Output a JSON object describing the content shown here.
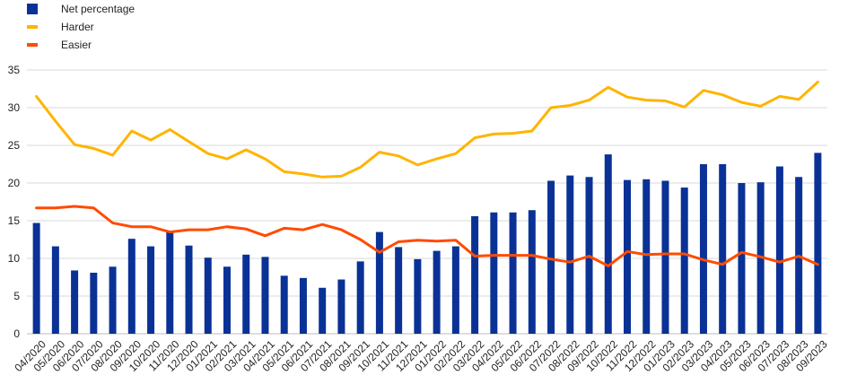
{
  "chart_data": {
    "type": "bar",
    "categories": [
      "04/2020",
      "05/2020",
      "06/2020",
      "07/2020",
      "08/2020",
      "09/2020",
      "10/2020",
      "11/2020",
      "12/2020",
      "01/2021",
      "02/2021",
      "03/2021",
      "04/2021",
      "05/2021",
      "06/2021",
      "07/2021",
      "08/2021",
      "09/2021",
      "10/2021",
      "11/2021",
      "12/2021",
      "01/2022",
      "02/2022",
      "03/2022",
      "04/2022",
      "05/2022",
      "06/2022",
      "07/2022",
      "08/2022",
      "09/2022",
      "10/2022",
      "11/2022",
      "12/2022",
      "01/2023",
      "02/2023",
      "03/2023",
      "04/2023",
      "05/2023",
      "06/2023",
      "07/2023",
      "08/2023",
      "09/2023"
    ],
    "series": [
      {
        "name": "Net percentage",
        "type": "bar",
        "color": "#0a3296",
        "values": [
          14.7,
          11.6,
          8.4,
          8.1,
          8.9,
          12.6,
          11.6,
          13.6,
          11.7,
          10.1,
          8.9,
          10.5,
          10.2,
          7.7,
          7.4,
          6.1,
          7.2,
          9.6,
          13.5,
          11.5,
          9.9,
          11.0,
          11.6,
          15.6,
          16.1,
          16.1,
          16.4,
          20.3,
          21.0,
          20.8,
          23.8,
          20.4,
          20.5,
          20.3,
          19.4,
          22.5,
          22.5,
          20.0,
          20.1,
          22.2,
          20.8,
          24.0
        ]
      },
      {
        "name": "Harder",
        "type": "line",
        "color": "#ffb400",
        "values": [
          31.5,
          28.2,
          25.1,
          24.6,
          23.7,
          26.9,
          25.7,
          27.1,
          25.5,
          23.9,
          23.2,
          24.4,
          23.2,
          21.5,
          21.2,
          20.8,
          20.9,
          22.1,
          24.1,
          23.6,
          22.4,
          23.2,
          23.9,
          26.0,
          26.5,
          26.6,
          26.9,
          30.0,
          30.3,
          31.0,
          32.7,
          31.4,
          31.0,
          30.9,
          30.1,
          32.3,
          31.7,
          30.7,
          30.2,
          31.5,
          31.1,
          33.4
        ]
      },
      {
        "name": "Easier",
        "type": "line",
        "color": "#ff4b00",
        "values": [
          16.7,
          16.7,
          16.9,
          16.7,
          14.7,
          14.2,
          14.2,
          13.5,
          13.8,
          13.8,
          14.2,
          13.9,
          13.0,
          14.0,
          13.8,
          14.5,
          13.8,
          12.5,
          10.8,
          12.2,
          12.4,
          12.3,
          12.4,
          10.3,
          10.4,
          10.4,
          10.4,
          9.9,
          9.5,
          10.3,
          9.0,
          10.9,
          10.5,
          10.6,
          10.6,
          9.8,
          9.2,
          10.8,
          10.2,
          9.5,
          10.3,
          9.2
        ]
      }
    ],
    "ylim": [
      0,
      35
    ],
    "yticks": [
      0,
      5,
      10,
      15,
      20,
      25,
      30,
      35
    ],
    "grid": true,
    "legend_position": "top-left"
  }
}
